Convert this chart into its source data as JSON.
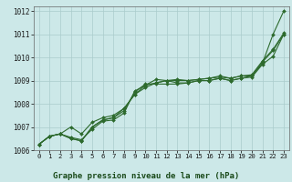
{
  "title": "Graphe pression niveau de la mer (hPa)",
  "background_color": "#cce8e8",
  "grid_color": "#aacccc",
  "line_color": "#2d6a2d",
  "xlim": [
    -0.5,
    23.5
  ],
  "ylim": [
    1006,
    1012.2
  ],
  "xticks": [
    0,
    1,
    2,
    3,
    4,
    5,
    6,
    7,
    8,
    9,
    10,
    11,
    12,
    13,
    14,
    15,
    16,
    17,
    18,
    19,
    20,
    21,
    22,
    23
  ],
  "yticks": [
    1006,
    1007,
    1008,
    1009,
    1010,
    1011,
    1012
  ],
  "lines": [
    [
      1006.25,
      1006.6,
      1006.7,
      1006.55,
      1006.45,
      1006.9,
      1007.25,
      1007.3,
      1007.6,
      1008.55,
      1008.8,
      1009.05,
      1009.0,
      1008.9,
      1008.9,
      1009.0,
      1009.0,
      1009.1,
      1009.0,
      1009.1,
      1009.2,
      1009.75,
      1011.0,
      1012.0
    ],
    [
      1006.25,
      1006.6,
      1006.7,
      1006.5,
      1006.4,
      1007.0,
      1007.3,
      1007.4,
      1007.7,
      1008.5,
      1008.85,
      1008.85,
      1008.85,
      1008.85,
      1008.9,
      1009.0,
      1009.0,
      1009.1,
      1009.0,
      1009.1,
      1009.15,
      1009.7,
      1010.05,
      1011.0
    ],
    [
      1006.25,
      1006.6,
      1006.7,
      1007.0,
      1006.7,
      1007.2,
      1007.4,
      1007.5,
      1007.8,
      1008.4,
      1008.7,
      1008.9,
      1009.0,
      1009.0,
      1009.0,
      1009.05,
      1009.1,
      1009.15,
      1009.1,
      1009.2,
      1009.2,
      1009.8,
      1010.3,
      1011.0
    ],
    [
      1006.25,
      1006.6,
      1006.7,
      1006.5,
      1006.4,
      1007.0,
      1007.3,
      1007.4,
      1007.8,
      1008.4,
      1008.8,
      1008.9,
      1009.0,
      1009.05,
      1009.0,
      1009.05,
      1009.1,
      1009.2,
      1009.1,
      1009.2,
      1009.25,
      1009.85,
      1010.35,
      1011.05
    ]
  ]
}
